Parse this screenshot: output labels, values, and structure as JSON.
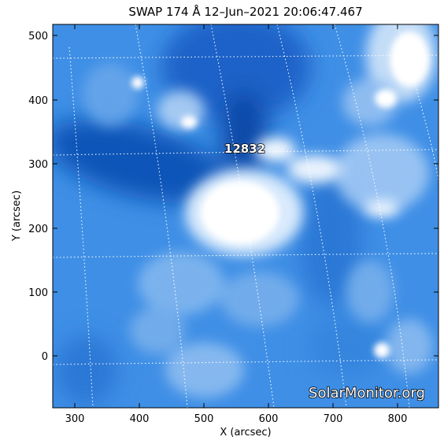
{
  "title": "SWAP 174 Å 12–Jun–2021 20:06:47.467",
  "axes": {
    "xlabel": "X (arcsec)",
    "ylabel": "Y (arcsec)",
    "x_ticks": [
      "300",
      "400",
      "500",
      "600",
      "700",
      "800"
    ],
    "y_ticks": [
      "500",
      "400",
      "300",
      "200",
      "100",
      "0"
    ]
  },
  "region_label": "12832",
  "watermark": "SolarMonitor.org",
  "colors": {
    "base_blue": "#3f8fe6",
    "dark_blue": "#0e55b8",
    "bright": "#ffffff",
    "grid": "#ffffff"
  }
}
